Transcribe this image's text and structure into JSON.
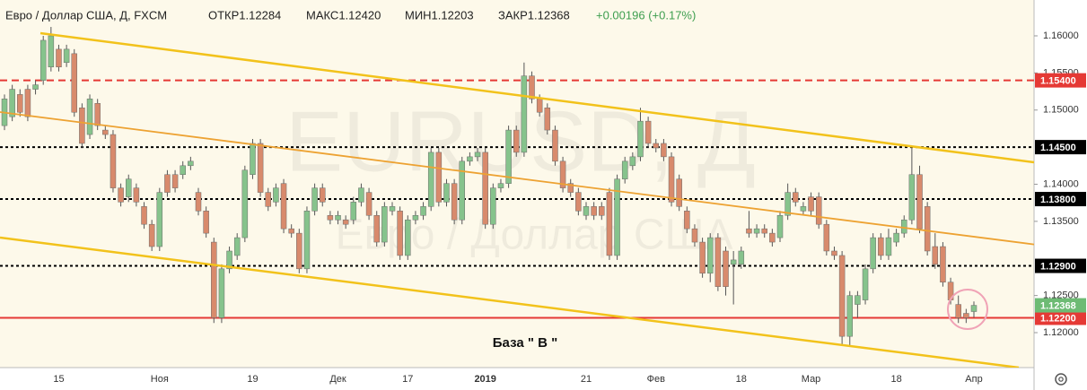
{
  "chart_data": {
    "type": "candlestick",
    "title": "Евро / Доллар США, Д, FXCM",
    "ohlc_texts": [
      "ОТКР1.12284",
      "МАКС1.12420",
      "МИН1.12203",
      "ЗАКР1.12368"
    ],
    "change": "+0.00196 (+0.17%)",
    "watermark": {
      "symbol": "EURUSD, Д",
      "name": "Евро / Доллар США"
    },
    "annotation": "База  \" В \"",
    "up_color": "#86c38c",
    "down_color": "#d88a6c",
    "change_color": "#3e9e4f",
    "last_price_color": "#6dbb74",
    "categories": [
      null,
      null,
      null,
      null,
      null,
      null,
      null,
      "15",
      null,
      null,
      null,
      null,
      null,
      null,
      null,
      null,
      null,
      null,
      null,
      null,
      "Ноя",
      null,
      null,
      null,
      null,
      null,
      null,
      null,
      null,
      null,
      null,
      null,
      "19",
      null,
      null,
      null,
      null,
      null,
      null,
      null,
      null,
      null,
      null,
      "Дек",
      null,
      null,
      null,
      null,
      null,
      null,
      null,
      null,
      "17",
      null,
      null,
      null,
      null,
      null,
      null,
      null,
      null,
      null,
      "2019",
      null,
      null,
      null,
      null,
      null,
      null,
      null,
      null,
      null,
      null,
      null,
      null,
      "21",
      null,
      null,
      null,
      null,
      null,
      null,
      null,
      null,
      "Фев",
      null,
      null,
      null,
      null,
      null,
      null,
      null,
      null,
      null,
      null,
      "18",
      null,
      null,
      null,
      null,
      null,
      null,
      null,
      null,
      "Мар",
      null,
      null,
      null,
      null,
      null,
      null,
      null,
      null,
      null,
      null,
      "18",
      null,
      null,
      null,
      null,
      null,
      null,
      null,
      null,
      null,
      "Апр"
    ],
    "open": [
      1.1479,
      1.1491,
      1.1521,
      1.1528,
      1.1528,
      1.154,
      1.1558,
      1.1582,
      1.1564,
      1.1576,
      1.1503,
      1.1467,
      1.1509,
      1.1473,
      1.1467,
      1.1395,
      1.1383,
      1.1395,
      1.137,
      1.1346,
      1.1316,
      1.1413,
      1.1413,
      1.1413,
      1.1425,
      1.1389,
      1.1364,
      1.1322,
      1.122,
      1.1286,
      1.1304,
      1.1328,
      1.1413,
      1.1455,
      1.1389,
      1.1376,
      1.1401,
      1.134,
      1.1334,
      1.1286,
      1.1364,
      1.1395,
      1.1358,
      1.1352,
      1.1352,
      1.1352,
      1.1376,
      1.1389,
      1.1358,
      1.1322,
      1.1364,
      1.1364,
      1.1304,
      1.1352,
      1.1358,
      1.137,
      1.1443,
      1.1376,
      1.1401,
      1.1352,
      1.1431,
      1.1437,
      1.1443,
      1.1346,
      1.1395,
      1.1401,
      1.1473,
      1.1443,
      1.1546,
      1.1515,
      1.1503,
      1.1473,
      1.1431,
      1.1401,
      1.1389,
      1.1358,
      1.137,
      1.137,
      1.1389,
      1.1304,
      1.1407,
      1.1425,
      1.1437,
      1.1485,
      1.1455,
      1.1455,
      1.1437,
      1.1407,
      1.1364,
      1.134,
      1.1322,
      1.128,
      1.1328,
      1.131,
      1.1292,
      1.1292,
      1.134,
      1.1334,
      1.134,
      1.1334,
      1.1328,
      1.1358,
      1.1389,
      1.1364,
      1.1383,
      1.1383,
      1.1346,
      1.131,
      1.1304,
      1.1195,
      1.1238,
      1.1244,
      1.1286,
      1.1328,
      1.1304,
      1.1322,
      1.1334,
      1.1352,
      1.1413,
      1.137,
      1.1316,
      1.1316,
      1.1268,
      1.1238,
      1.1226,
      1.12284
    ],
    "high": [
      1.1521,
      1.1534,
      1.1528,
      1.1534,
      1.154,
      1.16,
      1.1612,
      1.1588,
      1.1588,
      1.1582,
      1.1509,
      1.1521,
      1.1515,
      1.1479,
      1.1473,
      1.1401,
      1.1413,
      1.1401,
      1.1376,
      1.1352,
      1.1395,
      1.1419,
      1.1419,
      1.1431,
      1.1437,
      1.1395,
      1.137,
      1.1328,
      1.1292,
      1.1316,
      1.1334,
      1.1425,
      1.1461,
      1.1461,
      1.1395,
      1.1401,
      1.1407,
      1.1346,
      1.134,
      1.137,
      1.1401,
      1.1401,
      1.1364,
      1.1364,
      1.1358,
      1.1383,
      1.1401,
      1.1395,
      1.1364,
      1.1376,
      1.1376,
      1.137,
      1.1358,
      1.1364,
      1.1376,
      1.1449,
      1.1449,
      1.1407,
      1.1407,
      1.1437,
      1.1443,
      1.1449,
      1.1449,
      1.1401,
      1.1407,
      1.1479,
      1.1479,
      1.1564,
      1.1552,
      1.1521,
      1.1509,
      1.1479,
      1.1437,
      1.1407,
      1.1395,
      1.1376,
      1.1376,
      1.1376,
      1.1395,
      1.1413,
      1.1437,
      1.1443,
      1.1503,
      1.1491,
      1.1461,
      1.1461,
      1.1443,
      1.1413,
      1.137,
      1.1346,
      1.1328,
      1.1334,
      1.1334,
      1.1316,
      1.131,
      1.1316,
      1.1364,
      1.1346,
      1.1346,
      1.134,
      1.1364,
      1.1401,
      1.1395,
      1.1376,
      1.1389,
      1.1389,
      1.1352,
      1.1316,
      1.131,
      1.1256,
      1.1256,
      1.1292,
      1.1334,
      1.1334,
      1.134,
      1.134,
      1.1358,
      1.1449,
      1.1425,
      1.1376,
      1.1334,
      1.1322,
      1.1274,
      1.125,
      1.1232,
      1.1242
    ],
    "low": [
      1.1473,
      1.1485,
      1.1491,
      1.1485,
      1.1521,
      1.1534,
      1.1552,
      1.1552,
      1.1558,
      1.1491,
      1.1449,
      1.1461,
      1.1473,
      1.1461,
      1.1389,
      1.137,
      1.1376,
      1.137,
      1.134,
      1.131,
      1.131,
      1.1383,
      1.1389,
      1.1407,
      1.1419,
      1.1358,
      1.1328,
      1.1213,
      1.1213,
      1.128,
      1.1298,
      1.1322,
      1.1407,
      1.1383,
      1.1364,
      1.137,
      1.1334,
      1.1328,
      1.128,
      1.128,
      1.1358,
      1.137,
      1.1346,
      1.1346,
      1.134,
      1.1346,
      1.137,
      1.1352,
      1.1316,
      1.1316,
      1.1358,
      1.1298,
      1.1298,
      1.1346,
      1.1352,
      1.1364,
      1.137,
      1.137,
      1.1346,
      1.1346,
      1.1425,
      1.1431,
      1.134,
      1.134,
      1.1389,
      1.1395,
      1.1437,
      1.1437,
      1.1509,
      1.1491,
      1.1467,
      1.1425,
      1.1389,
      1.1383,
      1.1358,
      1.1352,
      1.1352,
      1.1352,
      1.1298,
      1.1298,
      1.1401,
      1.1419,
      1.1431,
      1.1449,
      1.1443,
      1.1431,
      1.137,
      1.1364,
      1.1334,
      1.1316,
      1.1274,
      1.1268,
      1.1256,
      1.125,
      1.1238,
      1.1286,
      1.1328,
      1.1328,
      1.1328,
      1.1316,
      1.1322,
      1.1352,
      1.137,
      1.1358,
      1.1358,
      1.134,
      1.1304,
      1.1298,
      1.1183,
      1.1183,
      1.122,
      1.1238,
      1.128,
      1.1298,
      1.1298,
      1.1316,
      1.1328,
      1.1346,
      1.1334,
      1.1304,
      1.1286,
      1.1262,
      1.1238,
      1.1213,
      1.1213,
      1.12203
    ],
    "close": [
      1.1515,
      1.1528,
      1.1497,
      1.1491,
      1.1534,
      1.1594,
      1.16,
      1.1558,
      1.1582,
      1.1497,
      1.1455,
      1.1515,
      1.1479,
      1.1467,
      1.1395,
      1.1376,
      1.1407,
      1.1376,
      1.1346,
      1.1316,
      1.1389,
      1.1389,
      1.1395,
      1.1425,
      1.1431,
      1.1364,
      1.1334,
      1.122,
      1.1286,
      1.131,
      1.1328,
      1.1419,
      1.1455,
      1.1389,
      1.137,
      1.1395,
      1.134,
      1.1334,
      1.1286,
      1.1364,
      1.1395,
      1.1376,
      1.1352,
      1.1358,
      1.1346,
      1.1376,
      1.1395,
      1.1358,
      1.1322,
      1.137,
      1.137,
      1.1304,
      1.1352,
      1.1358,
      1.137,
      1.1443,
      1.1376,
      1.1401,
      1.1352,
      1.1431,
      1.1437,
      1.1443,
      1.1346,
      1.1395,
      1.1401,
      1.1473,
      1.1443,
      1.1546,
      1.1515,
      1.1497,
      1.1473,
      1.1431,
      1.1395,
      1.1389,
      1.1364,
      1.137,
      1.1358,
      1.1358,
      1.1304,
      1.1407,
      1.1431,
      1.1437,
      1.1485,
      1.1455,
      1.1449,
      1.1437,
      1.1376,
      1.137,
      1.134,
      1.1322,
      1.128,
      1.1328,
      1.1262,
      1.1262,
      1.1298,
      1.131,
      1.1334,
      1.134,
      1.1334,
      1.1322,
      1.1358,
      1.1389,
      1.1376,
      1.137,
      1.1364,
      1.1346,
      1.131,
      1.1304,
      1.1195,
      1.125,
      1.125,
      1.1286,
      1.1328,
      1.1304,
      1.1328,
      1.1334,
      1.1352,
      1.1413,
      1.134,
      1.131,
      1.1292,
      1.1268,
      1.1244,
      1.122,
      1.122,
      1.12368
    ],
    "ylim": [
      1.11529,
      1.16483
    ],
    "yticks": [
      {
        "value": 1.12,
        "label": "1.12000"
      },
      {
        "value": 1.125,
        "label": "1.12500"
      },
      {
        "value": 1.135,
        "label": "1.13500"
      },
      {
        "value": 1.14,
        "label": "1.14000"
      },
      {
        "value": 1.15,
        "label": "1.15000"
      },
      {
        "value": 1.155,
        "label": "1.15500"
      },
      {
        "value": 1.16,
        "label": "1.16000"
      }
    ],
    "levels": [
      {
        "value": 1.154,
        "label": "1.15400",
        "color": "#e53935",
        "style": "dashed"
      },
      {
        "value": 1.145,
        "label": "1.14500",
        "color": "#000000",
        "style": "dotted"
      },
      {
        "value": 1.138,
        "label": "1.13800",
        "color": "#000000",
        "style": "dotted"
      },
      {
        "value": 1.129,
        "label": "1.12900",
        "color": "#000000",
        "style": "dotted"
      },
      {
        "value": 1.122,
        "label": "1.12200",
        "color": "#e53935",
        "style": "solid"
      }
    ]
  }
}
